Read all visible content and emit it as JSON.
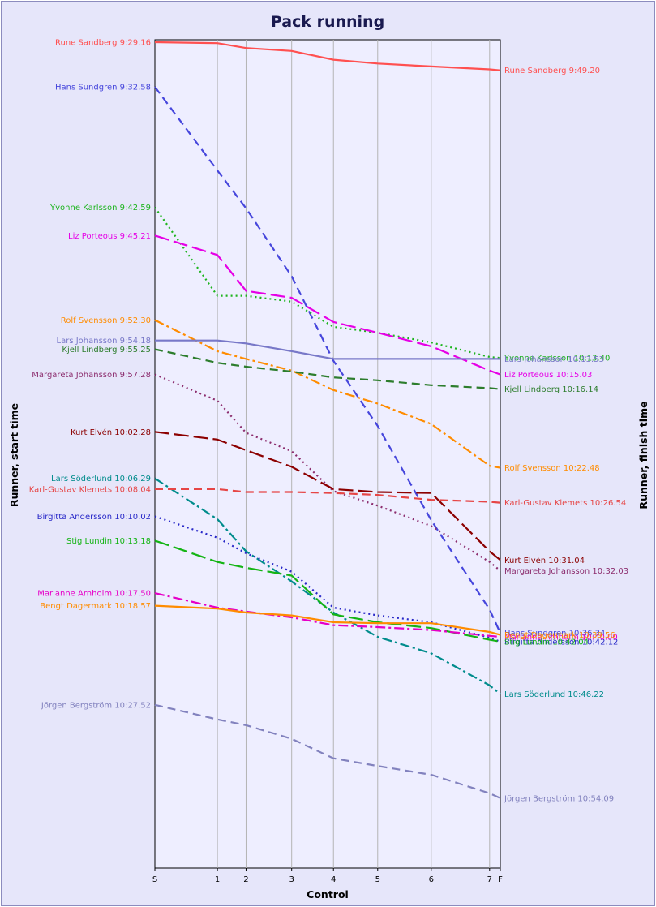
{
  "chart_data": {
    "type": "line",
    "title": "Pack running",
    "xlabel": "Control",
    "ylabel_left": "Runner, start time",
    "ylabel_right": "Runner, finish time",
    "controls": [
      "S",
      "1",
      "2",
      "3",
      "4",
      "5",
      "6",
      "7",
      "F"
    ],
    "control_positions": [
      0,
      1.81,
      2.64,
      3.96,
      5.17,
      6.45,
      8.0,
      9.69,
      10.0
    ],
    "y_range_minutes": [
      0,
      85
    ],
    "grid": true,
    "series": [
      {
        "name": "Rune Sandberg",
        "start_label": "Rune Sandberg 9:29.16",
        "finish_label": "Rune Sandberg 9:49.20",
        "color": "#ff5050",
        "style": "solid",
        "y": [
          0.0,
          0.1,
          0.6,
          0.9,
          1.8,
          2.2,
          2.5,
          2.8,
          2.9
        ]
      },
      {
        "name": "Hans Sundgren",
        "start_label": "Hans Sundgren 9:32.58",
        "finish_label": "Hans Sundgren 10:36.34",
        "color": "#4646dc",
        "style": "dash",
        "y": [
          4.6,
          13.2,
          17.1,
          24.1,
          32.8,
          39.5,
          49.2,
          58.4,
          60.8
        ]
      },
      {
        "name": "Yvonne Karlsson",
        "start_label": "Yvonne Karlsson 9:42.59",
        "finish_label": "Yvonne Karlsson 10:13.40",
        "color": "#1eb41e",
        "style": "dot",
        "y": [
          17.0,
          26.1,
          26.1,
          26.7,
          29.3,
          29.9,
          30.9,
          32.4,
          32.5
        ]
      },
      {
        "name": "Liz Porteous",
        "start_label": "Liz Porteous 9:45.21",
        "finish_label": "Liz Porteous 10:15.03",
        "color": "#e600e6",
        "style": "longdash",
        "y": [
          19.9,
          21.9,
          25.6,
          26.3,
          28.8,
          29.9,
          31.3,
          33.8,
          34.2
        ]
      },
      {
        "name": "Rolf Svensson",
        "start_label": "Rolf Svensson 9:52.30",
        "finish_label": "Rolf Svensson 10:22.48",
        "color": "#ff8c00",
        "style": "dashdot",
        "y": [
          28.6,
          31.8,
          32.6,
          33.8,
          35.8,
          37.2,
          39.3,
          43.6,
          43.8
        ]
      },
      {
        "name": "Lars Johansson",
        "start_label": "Lars Johansson 9:54.18",
        "finish_label": "Lars Johansson 10:13.53",
        "color": "#7878c8",
        "style": "solid",
        "y": [
          30.7,
          30.7,
          31.0,
          31.8,
          32.6,
          32.6,
          32.6,
          32.6,
          32.6
        ]
      },
      {
        "name": "Kjell Lindberg",
        "start_label": "Kjell Lindberg 9:55.25",
        "finish_label": "Kjell Lindberg 10:16.14",
        "color": "#2d7d2d",
        "style": "dash",
        "y": [
          31.6,
          33.0,
          33.4,
          33.9,
          34.5,
          34.8,
          35.3,
          35.6,
          35.7
        ]
      },
      {
        "name": "Margareta Johansson",
        "start_label": "Margareta Johansson 9:57.28",
        "finish_label": "Margareta Johansson 10:32.03",
        "color": "#8c2d6e",
        "style": "dot",
        "y": [
          34.2,
          36.9,
          40.2,
          42.1,
          46.2,
          47.7,
          49.8,
          53.5,
          54.4
        ]
      },
      {
        "name": "Kurt Elvén",
        "start_label": "Kurt Elvén 10:02.28",
        "finish_label": "Kurt Elvén 10:31.04",
        "color": "#8c0000",
        "style": "longdash",
        "y": [
          40.1,
          40.9,
          42.0,
          43.7,
          46.0,
          46.3,
          46.4,
          52.4,
          53.3
        ]
      },
      {
        "name": "Lars Söderlund",
        "start_label": "Lars Söderlund 10:06.29",
        "finish_label": "Lars Söderlund 10:46.22",
        "color": "#008c8c",
        "style": "dashdot",
        "y": [
          44.9,
          49.1,
          52.4,
          55.5,
          58.7,
          61.2,
          62.9,
          66.2,
          67.1
        ]
      },
      {
        "name": "Karl-Gustav Klemets",
        "start_label": "Karl-Gustav Klemets 10:08.04",
        "finish_label": "Karl-Gustav Klemets 10:26.54",
        "color": "#e64646",
        "style": "dash",
        "y": [
          46.0,
          46.0,
          46.3,
          46.3,
          46.4,
          46.6,
          47.1,
          47.3,
          47.4
        ]
      },
      {
        "name": "Birgitta Andersson",
        "start_label": "Birgitta Andersson 10:10.02",
        "finish_label": "Birgitta Andersson 10:42.12",
        "color": "#2828c8",
        "style": "dot",
        "y": [
          48.8,
          51.0,
          52.6,
          54.5,
          58.2,
          59.0,
          59.7,
          61.3,
          61.7
        ]
      },
      {
        "name": "Stig Lundin",
        "start_label": "Stig Lundin 10:13.18",
        "finish_label": "Stig Lundin 10:42.04",
        "color": "#14b414",
        "style": "longdash",
        "y": [
          51.3,
          53.5,
          54.1,
          54.9,
          58.9,
          59.7,
          60.3,
          61.5,
          61.7
        ]
      },
      {
        "name": "Marianne Arnholm",
        "start_label": "Marianne Arnholm 10:17.50",
        "finish_label": "Marianne Arnholm 10:40.00",
        "color": "#e600c8",
        "style": "dashdot",
        "y": [
          56.7,
          58.2,
          58.6,
          59.2,
          60.0,
          60.2,
          60.5,
          61.1,
          61.2
        ]
      },
      {
        "name": "Bengt Dagermark",
        "start_label": "Bengt Dagermark 10:18.57",
        "finish_label": "Bengt Dagermark 10:39.56",
        "color": "#ff8c00",
        "style": "solid",
        "y": [
          58.0,
          58.3,
          58.7,
          59.0,
          59.7,
          59.8,
          59.8,
          60.7,
          61.0
        ]
      },
      {
        "name": "Jörgen Bergström",
        "start_label": "Jörgen Bergström 10:27.52",
        "finish_label": "Jörgen Bergström 10:54.09",
        "color": "#8282be",
        "style": "dash",
        "y": [
          68.2,
          69.7,
          70.3,
          71.7,
          73.7,
          74.5,
          75.4,
          77.3,
          77.8
        ]
      }
    ]
  }
}
